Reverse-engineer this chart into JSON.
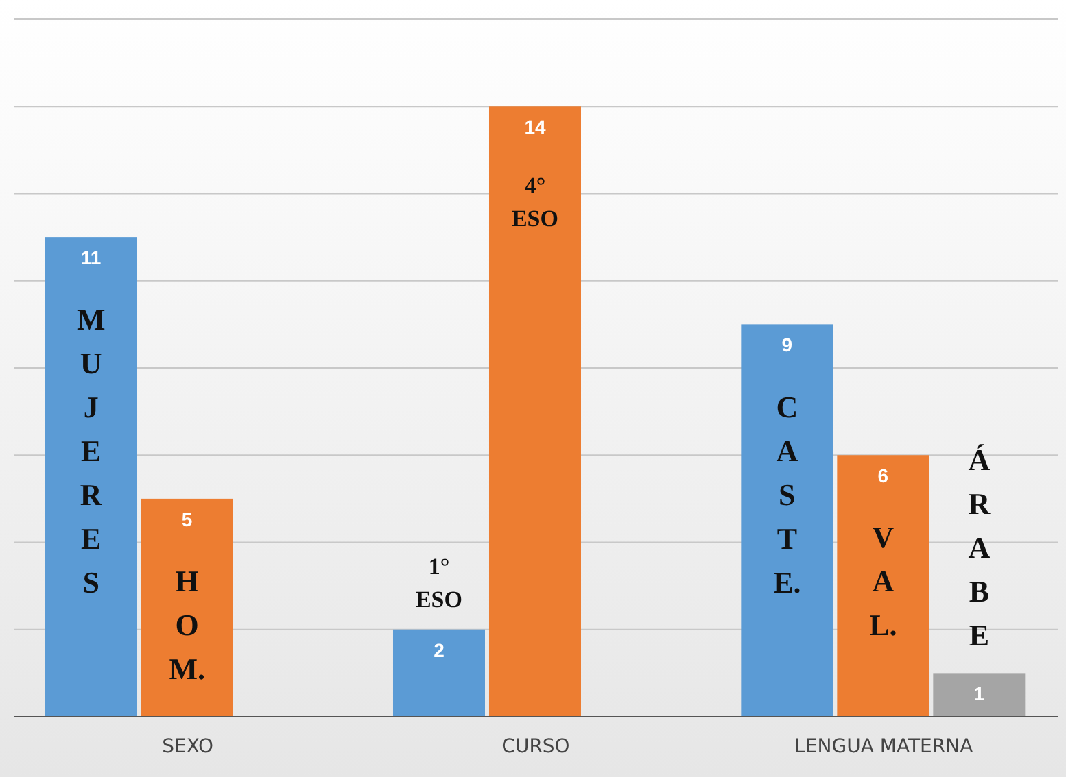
{
  "chart_data": {
    "type": "bar",
    "categories": [
      "SEXO",
      "CURSO",
      "LENGUA MATERNA"
    ],
    "series": [
      {
        "color": "#5b9bd5",
        "values": [
          11,
          2,
          9
        ]
      },
      {
        "color": "#ed7d31",
        "values": [
          5,
          14,
          6
        ]
      },
      {
        "color": "#a5a5a5",
        "values": [
          null,
          null,
          1
        ]
      }
    ],
    "ylim": [
      0,
      16
    ],
    "yticks": [
      {
        "value": 0,
        "label": null
      },
      {
        "value": 2,
        "label": null
      },
      {
        "value": 4,
        "label": null
      },
      {
        "value": 6,
        "label": null
      },
      {
        "value": 8,
        "label": null
      },
      {
        "value": 10,
        "label": null
      },
      {
        "value": 12,
        "label": null
      },
      {
        "value": 14,
        "label": null
      },
      {
        "value": 16,
        "label": null
      }
    ],
    "tick_labels": "x",
    "grid": "y",
    "legend": false,
    "data_labels": true,
    "annotations": [
      "MUJERES",
      "HOM.",
      "1° ESO",
      "4° ESO",
      "CASTE.",
      "VAL.",
      "ÁRABE"
    ]
  }
}
